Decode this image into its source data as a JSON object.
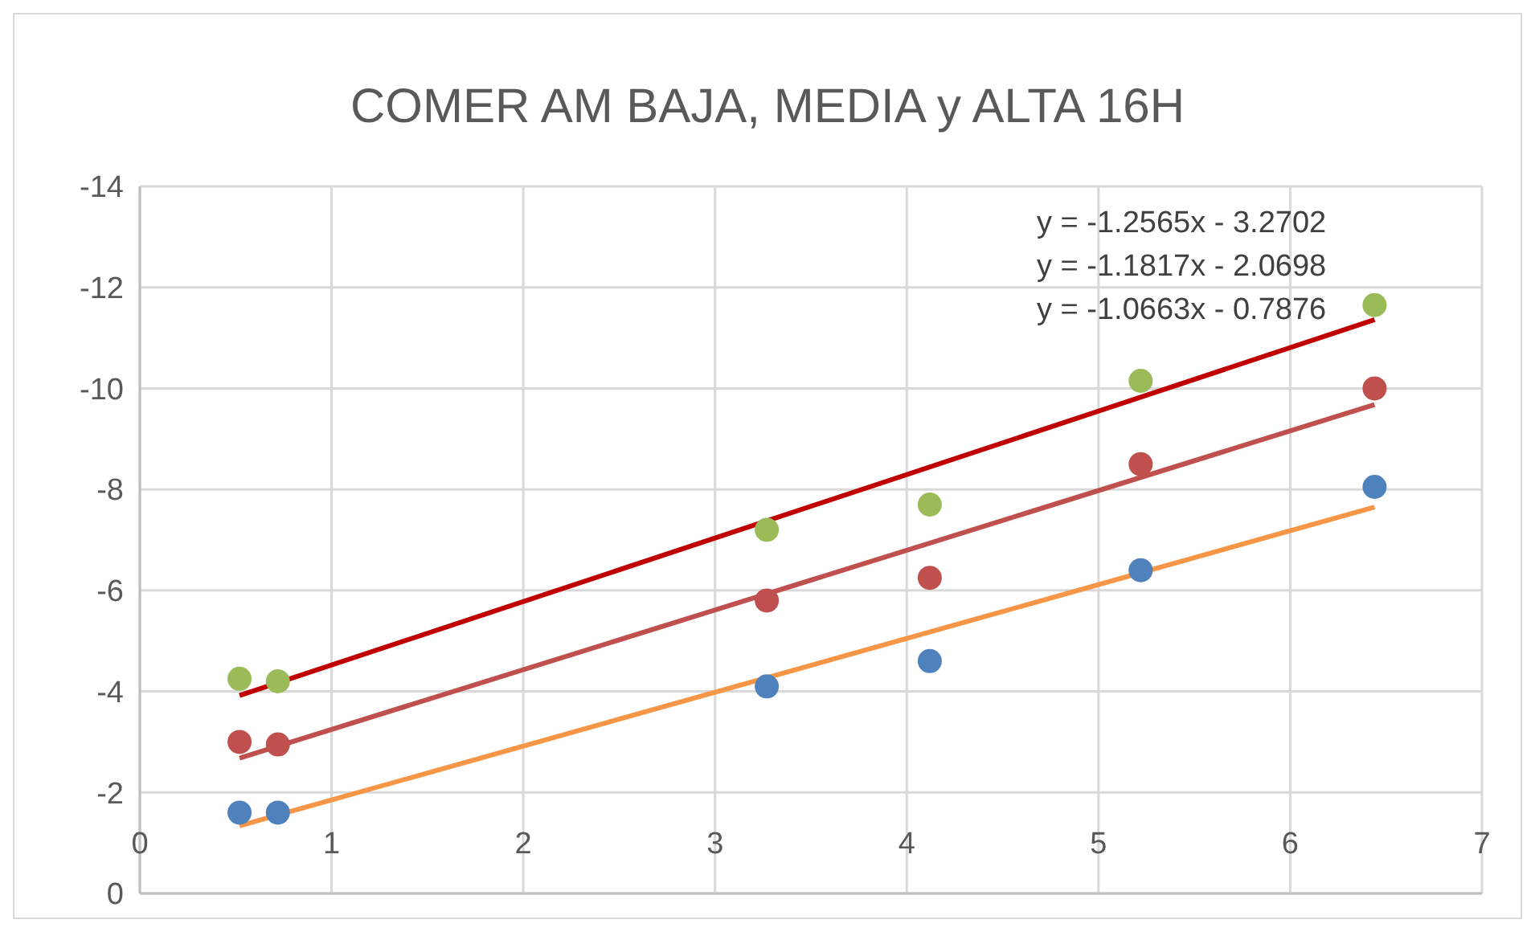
{
  "chart_data": {
    "type": "scatter",
    "title": "COMER AM BAJA, MEDIA y ALTA 16H",
    "xlim": [
      0,
      7
    ],
    "xticks": [
      0,
      1,
      2,
      3,
      4,
      5,
      6,
      7
    ],
    "ylim": [
      0,
      -14
    ],
    "yticks": [
      0,
      -2,
      -4,
      -6,
      -8,
      -10,
      -12,
      -14
    ],
    "grid": true,
    "marker": "circle",
    "annotations": [
      "y = -1.2565x - 3.2702",
      "y = -1.1817x - 2.0698",
      "y = -1.0663x - 0.7876"
    ],
    "series": [
      {
        "type": "line",
        "color": "#c00000",
        "x": [
          0.52,
          6.44
        ],
        "values": [
          -3.92,
          -11.36
        ],
        "marker": "none"
      },
      {
        "type": "line",
        "color": "#c0504d",
        "x": [
          0.52,
          6.44
        ],
        "values": [
          -2.68,
          -9.68
        ],
        "marker": "none"
      },
      {
        "type": "line",
        "color": "#f79646",
        "x": [
          0.52,
          6.44
        ],
        "values": [
          -1.34,
          -7.65
        ],
        "marker": "none"
      },
      {
        "color": "#9bbb59",
        "x": [
          0.52,
          0.72,
          3.27,
          4.12,
          5.22,
          6.44
        ],
        "values": [
          -4.25,
          -4.2,
          -7.2,
          -7.7,
          -10.15,
          -11.65
        ]
      },
      {
        "color": "#c0504d",
        "x": [
          0.52,
          0.72,
          3.27,
          4.12,
          5.22,
          6.44
        ],
        "values": [
          -3.0,
          -2.95,
          -5.8,
          -6.25,
          -8.5,
          -10.0
        ]
      },
      {
        "color": "#4f81bd",
        "x": [
          0.52,
          0.72,
          3.27,
          4.12,
          5.22,
          6.44
        ],
        "values": [
          -1.6,
          -1.6,
          -4.1,
          -4.6,
          -6.4,
          -8.05
        ]
      }
    ]
  }
}
